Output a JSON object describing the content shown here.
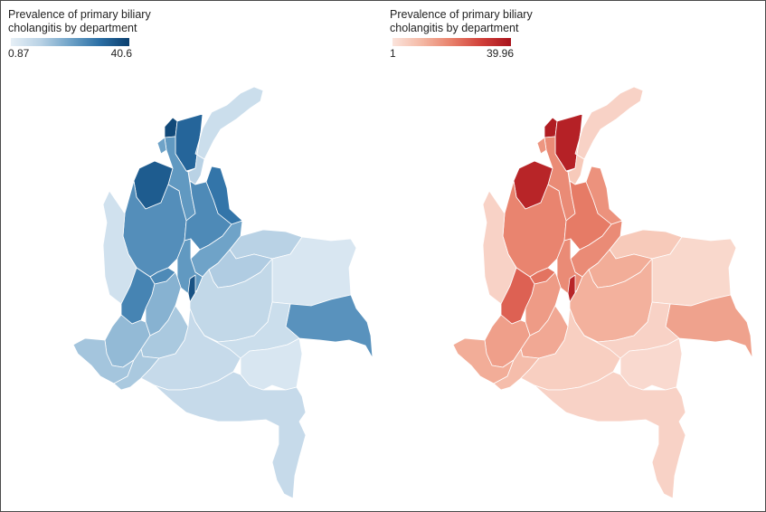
{
  "figure": {
    "legend_left": {
      "title": "Prevalence of primary biliary cholangitis by department",
      "min_label": "0.87",
      "max_label": "40.6",
      "color_low": "#e6eff6",
      "color_high": "#0b3f6e"
    },
    "legend_right": {
      "title": "Prevalence of primary biliary cholangitis by department",
      "min_label": "1",
      "max_label": "39.96",
      "color_low": "#fbe4dc",
      "color_high": "#a8131c"
    }
  },
  "regions": [
    {
      "id": "guajira",
      "blue": 0.15,
      "red": 0.1
    },
    {
      "id": "atlantico",
      "blue": 0.95,
      "red": 0.95
    },
    {
      "id": "magdalena",
      "blue": 0.8,
      "red": 0.92
    },
    {
      "id": "cesar",
      "blue": 0.25,
      "red": 0.15
    },
    {
      "id": "bolivar",
      "blue": 0.55,
      "red": 0.45
    },
    {
      "id": "sucre",
      "blue": 0.5,
      "red": 0.4
    },
    {
      "id": "cordoba",
      "blue": 0.85,
      "red": 0.9
    },
    {
      "id": "norte_santander",
      "blue": 0.72,
      "red": 0.42
    },
    {
      "id": "antioquia",
      "blue": 0.6,
      "red": 0.48
    },
    {
      "id": "santander",
      "blue": 0.62,
      "red": 0.52
    },
    {
      "id": "choco",
      "blue": 0.12,
      "red": 0.1
    },
    {
      "id": "boyaca",
      "blue": 0.5,
      "red": 0.45
    },
    {
      "id": "arauca",
      "blue": 0.25,
      "red": 0.15
    },
    {
      "id": "caldas",
      "blue": 0.62,
      "red": 0.55
    },
    {
      "id": "cundinamarca",
      "blue": 0.55,
      "red": 0.45
    },
    {
      "id": "bogota",
      "blue": 0.9,
      "red": 0.9
    },
    {
      "id": "casanare",
      "blue": 0.28,
      "red": 0.3
    },
    {
      "id": "vichada",
      "blue": 0.08,
      "red": 0.07
    },
    {
      "id": "valle",
      "blue": 0.65,
      "red": 0.62
    },
    {
      "id": "tolima",
      "blue": 0.42,
      "red": 0.38
    },
    {
      "id": "meta",
      "blue": 0.2,
      "red": 0.28
    },
    {
      "id": "guainia",
      "blue": 0.58,
      "red": 0.35
    },
    {
      "id": "cauca",
      "blue": 0.38,
      "red": 0.36
    },
    {
      "id": "huila",
      "blue": 0.3,
      "red": 0.32
    },
    {
      "id": "narino",
      "blue": 0.32,
      "red": 0.3
    },
    {
      "id": "putumayo",
      "blue": 0.3,
      "red": 0.22
    },
    {
      "id": "caqueta",
      "blue": 0.18,
      "red": 0.12
    },
    {
      "id": "guaviare",
      "blue": 0.15,
      "red": 0.1
    },
    {
      "id": "vaupes",
      "blue": 0.08,
      "red": 0.06
    },
    {
      "id": "amazonas",
      "blue": 0.18,
      "red": 0.1
    }
  ]
}
